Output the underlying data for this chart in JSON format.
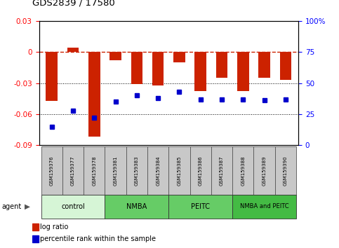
{
  "title": "GDS2839 / 17580",
  "samples": [
    "GSM159376",
    "GSM159377",
    "GSM159378",
    "GSM159381",
    "GSM159383",
    "GSM159384",
    "GSM159385",
    "GSM159386",
    "GSM159387",
    "GSM159388",
    "GSM159389",
    "GSM159390"
  ],
  "log_ratio": [
    -0.047,
    0.004,
    -0.082,
    -0.008,
    -0.031,
    -0.032,
    -0.01,
    -0.038,
    -0.025,
    -0.038,
    -0.025,
    -0.027
  ],
  "percentile_rank": [
    15,
    28,
    22,
    35,
    40,
    38,
    43,
    37,
    37,
    37,
    36,
    37
  ],
  "group_info": [
    {
      "label": "control",
      "start": 0,
      "end": 3,
      "color": "#d6f5d6"
    },
    {
      "label": "NMBA",
      "start": 3,
      "end": 6,
      "color": "#66cc66"
    },
    {
      "label": "PEITC",
      "start": 6,
      "end": 9,
      "color": "#66cc66"
    },
    {
      "label": "NMBA and PEITC",
      "start": 9,
      "end": 12,
      "color": "#44bb44"
    }
  ],
  "ylim_left": [
    -0.09,
    0.03
  ],
  "ylim_right": [
    0,
    100
  ],
  "yticks_left": [
    -0.09,
    -0.06,
    -0.03,
    0,
    0.03
  ],
  "yticks_right": [
    0,
    25,
    50,
    75,
    100
  ],
  "bar_color": "#cc2200",
  "dot_color": "#0000cc",
  "background_color": "#ffffff",
  "plot_bg": "#ffffff",
  "dashed_line_color": "#cc2200",
  "hline_colors": [
    "#cc2200",
    "#000000",
    "#000000"
  ]
}
